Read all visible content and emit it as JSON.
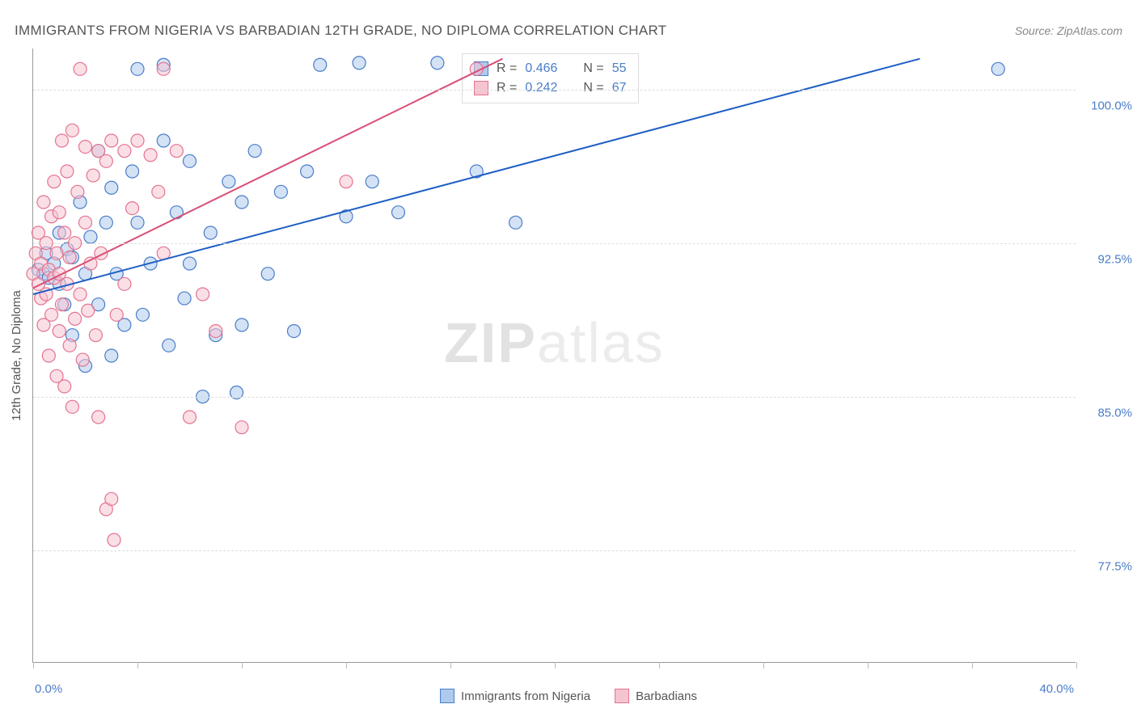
{
  "title": "IMMIGRANTS FROM NIGERIA VS BARBADIAN 12TH GRADE, NO DIPLOMA CORRELATION CHART",
  "source": "Source: ZipAtlas.com",
  "y_axis_label": "12th Grade, No Diploma",
  "watermark_zip": "ZIP",
  "watermark_atlas": "atlas",
  "chart": {
    "type": "scatter",
    "xlim": [
      0,
      40
    ],
    "ylim": [
      72,
      102
    ],
    "x_ticks": [
      0,
      4,
      8,
      12,
      16,
      20,
      24,
      28,
      32,
      36,
      40
    ],
    "x_tick_labels": {
      "0": "0.0%",
      "40": "40.0%"
    },
    "y_ticks": [
      77.5,
      85.0,
      92.5,
      100.0
    ],
    "y_tick_labels": [
      "77.5%",
      "85.0%",
      "92.5%",
      "100.0%"
    ],
    "background_color": "#ffffff",
    "grid_color": "#dddddd",
    "axis_color": "#999999",
    "marker_radius": 8,
    "marker_opacity": 0.55,
    "series": [
      {
        "name": "Immigrants from Nigeria",
        "fill": "#aecbed",
        "stroke": "#4a7dc9",
        "line_color": "#1f5fc4",
        "R": "0.466",
        "N": "55",
        "trend": {
          "x1": 0,
          "y1": 90.0,
          "x2": 34,
          "y2": 101.5
        },
        "points": [
          [
            0.2,
            91.2
          ],
          [
            0.4,
            91.0
          ],
          [
            0.5,
            92.0
          ],
          [
            0.6,
            90.8
          ],
          [
            0.8,
            91.5
          ],
          [
            1.0,
            90.5
          ],
          [
            1.0,
            93.0
          ],
          [
            1.2,
            89.5
          ],
          [
            1.3,
            92.2
          ],
          [
            1.5,
            91.8
          ],
          [
            1.5,
            88.0
          ],
          [
            1.8,
            94.5
          ],
          [
            2.0,
            91.0
          ],
          [
            2.0,
            86.5
          ],
          [
            2.2,
            92.8
          ],
          [
            2.5,
            97.0
          ],
          [
            2.5,
            89.5
          ],
          [
            2.8,
            93.5
          ],
          [
            3.0,
            95.2
          ],
          [
            3.0,
            87.0
          ],
          [
            3.2,
            91.0
          ],
          [
            3.5,
            88.5
          ],
          [
            3.8,
            96.0
          ],
          [
            4.0,
            93.5
          ],
          [
            4.0,
            101.0
          ],
          [
            4.2,
            89.0
          ],
          [
            4.5,
            91.5
          ],
          [
            5.0,
            101.2
          ],
          [
            5.0,
            97.5
          ],
          [
            5.2,
            87.5
          ],
          [
            5.5,
            94.0
          ],
          [
            5.8,
            89.8
          ],
          [
            6.0,
            91.5
          ],
          [
            6.0,
            96.5
          ],
          [
            6.5,
            85.0
          ],
          [
            6.8,
            93.0
          ],
          [
            7.0,
            88.0
          ],
          [
            7.5,
            95.5
          ],
          [
            7.8,
            85.2
          ],
          [
            8.0,
            94.5
          ],
          [
            8.0,
            88.5
          ],
          [
            8.5,
            97.0
          ],
          [
            9.0,
            91.0
          ],
          [
            9.5,
            95.0
          ],
          [
            10.0,
            88.2
          ],
          [
            10.5,
            96.0
          ],
          [
            11.0,
            101.2
          ],
          [
            12.0,
            93.8
          ],
          [
            12.5,
            101.3
          ],
          [
            13.0,
            95.5
          ],
          [
            14.0,
            94.0
          ],
          [
            15.5,
            101.3
          ],
          [
            17.0,
            96.0
          ],
          [
            18.5,
            93.5
          ],
          [
            37.0,
            101.0
          ]
        ]
      },
      {
        "name": "Barbadians",
        "fill": "#f5c4d1",
        "stroke": "#e5738f",
        "line_color": "#d94f75",
        "R": "0.242",
        "N": "67",
        "trend": {
          "x1": 0,
          "y1": 90.3,
          "x2": 18,
          "y2": 101.5
        },
        "points": [
          [
            0.0,
            91.0
          ],
          [
            0.1,
            92.0
          ],
          [
            0.2,
            90.5
          ],
          [
            0.2,
            93.0
          ],
          [
            0.3,
            89.8
          ],
          [
            0.3,
            91.5
          ],
          [
            0.4,
            94.5
          ],
          [
            0.4,
            88.5
          ],
          [
            0.5,
            90.0
          ],
          [
            0.5,
            92.5
          ],
          [
            0.6,
            87.0
          ],
          [
            0.6,
            91.2
          ],
          [
            0.7,
            93.8
          ],
          [
            0.7,
            89.0
          ],
          [
            0.8,
            95.5
          ],
          [
            0.8,
            90.8
          ],
          [
            0.9,
            86.0
          ],
          [
            0.9,
            92.0
          ],
          [
            1.0,
            94.0
          ],
          [
            1.0,
            88.2
          ],
          [
            1.0,
            91.0
          ],
          [
            1.1,
            97.5
          ],
          [
            1.1,
            89.5
          ],
          [
            1.2,
            93.0
          ],
          [
            1.2,
            85.5
          ],
          [
            1.3,
            90.5
          ],
          [
            1.3,
            96.0
          ],
          [
            1.4,
            87.5
          ],
          [
            1.4,
            91.8
          ],
          [
            1.5,
            98.0
          ],
          [
            1.5,
            84.5
          ],
          [
            1.6,
            92.5
          ],
          [
            1.6,
            88.8
          ],
          [
            1.7,
            95.0
          ],
          [
            1.8,
            101.0
          ],
          [
            1.8,
            90.0
          ],
          [
            1.9,
            86.8
          ],
          [
            2.0,
            93.5
          ],
          [
            2.0,
            97.2
          ],
          [
            2.1,
            89.2
          ],
          [
            2.2,
            91.5
          ],
          [
            2.3,
            95.8
          ],
          [
            2.4,
            88.0
          ],
          [
            2.5,
            97.0
          ],
          [
            2.5,
            84.0
          ],
          [
            2.6,
            92.0
          ],
          [
            2.8,
            96.5
          ],
          [
            2.8,
            79.5
          ],
          [
            3.0,
            97.5
          ],
          [
            3.0,
            80.0
          ],
          [
            3.1,
            78.0
          ],
          [
            3.2,
            89.0
          ],
          [
            3.5,
            97.0
          ],
          [
            3.5,
            90.5
          ],
          [
            3.8,
            94.2
          ],
          [
            4.0,
            97.5
          ],
          [
            4.5,
            96.8
          ],
          [
            4.8,
            95.0
          ],
          [
            5.0,
            101.0
          ],
          [
            5.0,
            92.0
          ],
          [
            5.5,
            97.0
          ],
          [
            6.0,
            84.0
          ],
          [
            6.5,
            90.0
          ],
          [
            7.0,
            88.2
          ],
          [
            8.0,
            83.5
          ],
          [
            12.0,
            95.5
          ],
          [
            17.0,
            101.0
          ]
        ]
      }
    ]
  },
  "legend": {
    "items": [
      {
        "label": "Immigrants from Nigeria",
        "fill": "#aecbed",
        "stroke": "#4a7dc9"
      },
      {
        "label": "Barbadians",
        "fill": "#f5c4d1",
        "stroke": "#e5738f"
      }
    ]
  }
}
